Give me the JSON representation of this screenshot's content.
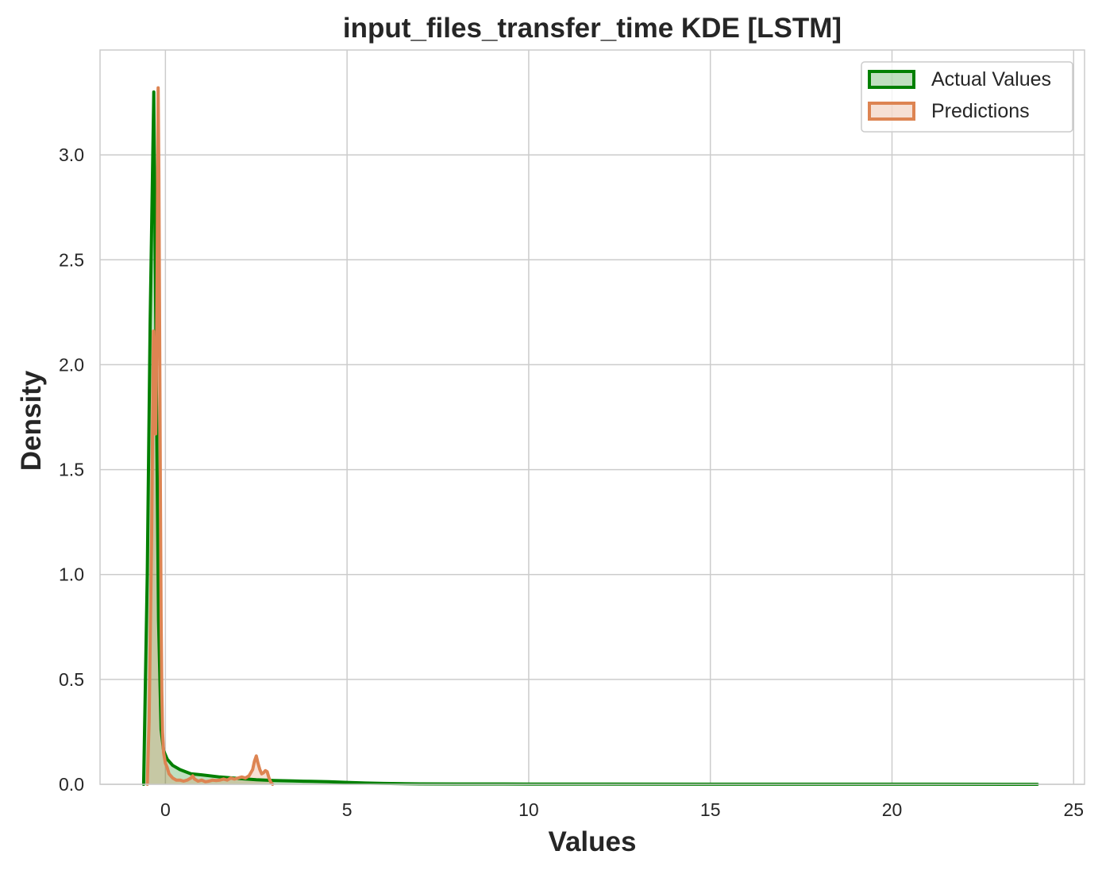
{
  "chart_data": {
    "type": "line",
    "title": "input_files_transfer_time KDE [LSTM]",
    "xlabel": "Values",
    "ylabel": "Density",
    "xlim": [
      -1.8,
      25.3
    ],
    "ylim": [
      0,
      3.5
    ],
    "xticks": [
      0,
      5,
      10,
      15,
      20,
      25
    ],
    "xtick_labels": [
      "0",
      "5",
      "10",
      "15",
      "20",
      "25"
    ],
    "yticks": [
      0.0,
      0.5,
      1.0,
      1.5,
      2.0,
      2.5,
      3.0
    ],
    "ytick_labels": [
      "0.0",
      "0.5",
      "1.0",
      "1.5",
      "2.0",
      "2.5",
      "3.0"
    ],
    "grid": true,
    "legend_position": "upper right",
    "fill_opacity": 0.25,
    "series": [
      {
        "name": "Actual Values",
        "color": "#008000",
        "x": [
          -0.6,
          -0.5,
          -0.42,
          -0.32,
          -0.28,
          -0.24,
          -0.19,
          -0.12,
          -0.05,
          0.05,
          0.2,
          0.4,
          0.7,
          1.0,
          1.5,
          2.0,
          2.5,
          3.0,
          3.5,
          4.0,
          4.5,
          5.0,
          5.5,
          6.0,
          7.0,
          8.0,
          10.0,
          12.0,
          15.0,
          18.0,
          21.0,
          24.0
        ],
        "y": [
          0.0,
          1.0,
          2.2,
          3.3,
          2.5,
          1.7,
          0.78,
          0.26,
          0.16,
          0.12,
          0.09,
          0.07,
          0.05,
          0.045,
          0.035,
          0.028,
          0.022,
          0.018,
          0.016,
          0.014,
          0.012,
          0.009,
          0.006,
          0.004,
          0.002,
          0.0015,
          0.001,
          0.0008,
          0.0005,
          0.0003,
          0.0002,
          0.0001
        ]
      },
      {
        "name": "Predictions",
        "color": "#dd8452",
        "x": [
          -0.5,
          -0.45,
          -0.38,
          -0.33,
          -0.3,
          -0.27,
          -0.24,
          -0.22,
          -0.2,
          -0.18,
          -0.16,
          -0.14,
          -0.12,
          -0.1,
          -0.08,
          -0.05,
          0.0,
          0.05,
          0.1,
          0.2,
          0.3,
          0.4,
          0.5,
          0.6,
          0.7,
          0.75,
          0.8,
          0.9,
          1.0,
          1.1,
          1.2,
          1.3,
          1.4,
          1.5,
          1.6,
          1.7,
          1.8,
          1.9,
          2.0,
          2.1,
          2.2,
          2.3,
          2.4,
          2.45,
          2.5,
          2.55,
          2.6,
          2.65,
          2.7,
          2.75,
          2.8,
          2.85,
          2.9,
          2.95
        ],
        "y": [
          0.0,
          0.3,
          1.2,
          2.16,
          1.9,
          1.67,
          2.1,
          2.7,
          3.32,
          2.9,
          2.2,
          1.4,
          0.8,
          0.45,
          0.25,
          0.15,
          0.1,
          0.08,
          0.05,
          0.03,
          0.02,
          0.02,
          0.015,
          0.02,
          0.03,
          0.04,
          0.025,
          0.015,
          0.02,
          0.012,
          0.015,
          0.02,
          0.018,
          0.02,
          0.025,
          0.02,
          0.03,
          0.025,
          0.03,
          0.035,
          0.03,
          0.04,
          0.07,
          0.11,
          0.135,
          0.1,
          0.07,
          0.05,
          0.055,
          0.065,
          0.06,
          0.03,
          0.01,
          0.0
        ]
      }
    ]
  }
}
